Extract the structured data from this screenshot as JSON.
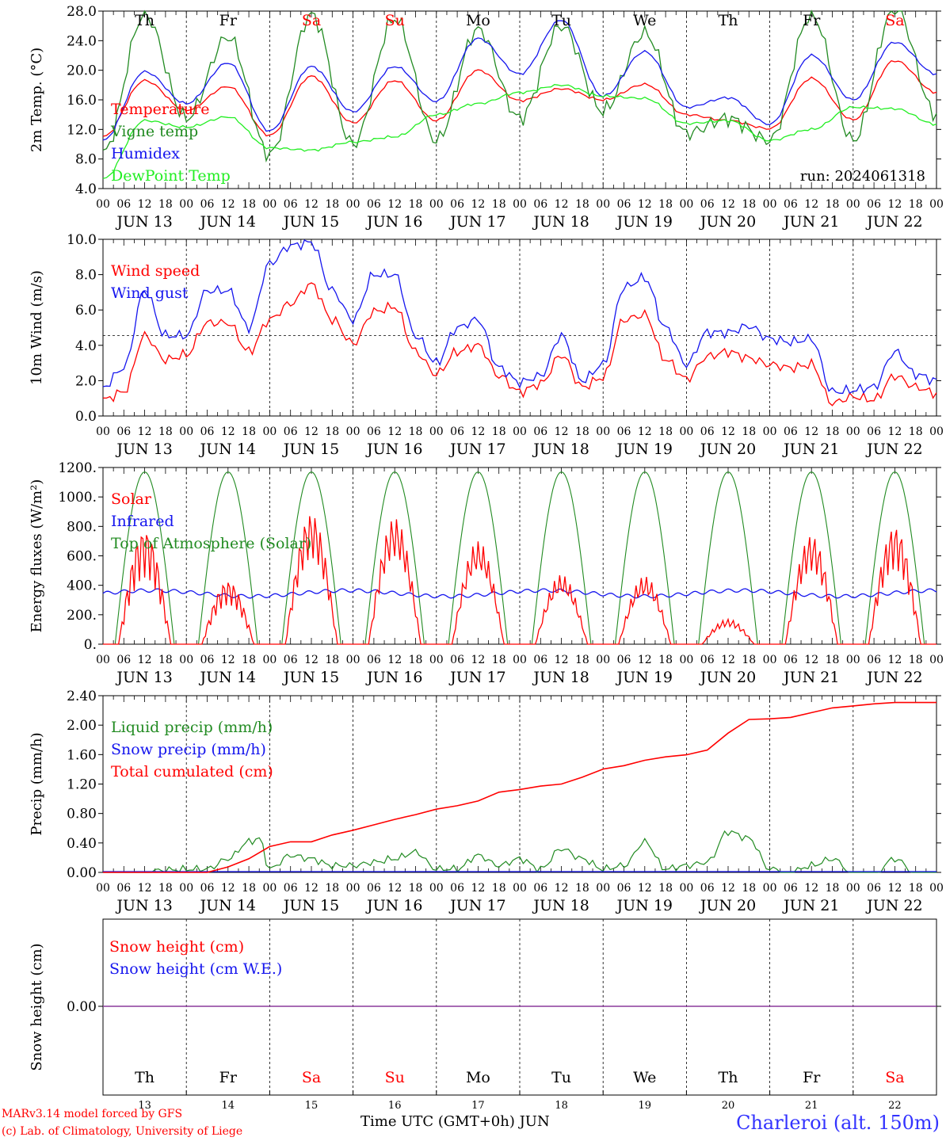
{
  "footer": {
    "model_line": "MARv3.14 model forced by GFS",
    "lab_line": "(c) Lab. of Climatology, University of Liege",
    "x_title": "Time UTC (GMT+0h) JUN",
    "station": "Charleroi (alt. 150m)"
  },
  "colors": {
    "red": "#ff0000",
    "green": "#228b22",
    "blue": "#1515ee",
    "light_green": "#22ee22",
    "purple": "#8b3a9b"
  },
  "chart_data": [
    {
      "type": "line",
      "ylabel": "2m Temp. (°C)",
      "ylim": [
        4,
        28
      ],
      "yticks": [
        "4.0",
        "8.0",
        "12.0",
        "16.0",
        "20.0",
        "24.0",
        "28.0"
      ],
      "day_names": [
        "Th",
        "Fr",
        "Sa",
        "Su",
        "Mo",
        "Tu",
        "We",
        "Th",
        "Fr",
        "Sa"
      ],
      "day_colors": [
        "#000000",
        "#000000",
        "#ff0000",
        "#ff0000",
        "#000000",
        "#000000",
        "#000000",
        "#000000",
        "#000000",
        "#ff0000"
      ],
      "annotation": "run: 2024061318",
      "x_hours_labels": [
        "00",
        "06",
        "12",
        "18"
      ],
      "x_day_labels": [
        "JUN 13",
        "JUN 14",
        "JUN 15",
        "JUN 16",
        "JUN 17",
        "JUN 18",
        "JUN 19",
        "JUN 20",
        "JUN 21",
        "JUN 22"
      ],
      "series": [
        {
          "name": "Temperature",
          "color": "#ff0000",
          "x": [
            0,
            12,
            24,
            36,
            48,
            60,
            72,
            84,
            96,
            108,
            120,
            132,
            144,
            156,
            168,
            180,
            192,
            204,
            216,
            228,
            240
          ],
          "values": [
            11.0,
            18.6,
            14.6,
            17.8,
            11.2,
            19.2,
            12.9,
            18.6,
            13.2,
            20.0,
            15.9,
            17.5,
            16.0,
            18.1,
            14.0,
            13.2,
            12.1,
            18.9,
            13.3,
            21.3,
            17.0
          ]
        },
        {
          "name": "Vigne temp",
          "color": "#228b22",
          "x": [
            0,
            12,
            24,
            36,
            48,
            60,
            72,
            84,
            96,
            108,
            120,
            132,
            144,
            156,
            168,
            180,
            192,
            204,
            216,
            228,
            240
          ],
          "values": [
            8.8,
            27.5,
            13.5,
            24.5,
            8.6,
            27.5,
            10.0,
            27.0,
            10.5,
            25.5,
            13.5,
            26.0,
            14.5,
            25.0,
            11.5,
            13.5,
            10.5,
            27.5,
            10.5,
            28.5,
            14.0
          ]
        },
        {
          "name": "Humidex",
          "color": "#1515ee",
          "x": [
            0,
            12,
            24,
            36,
            48,
            60,
            72,
            84,
            96,
            108,
            120,
            132,
            144,
            156,
            168,
            180,
            192,
            204,
            216,
            228,
            240
          ],
          "values": [
            10.5,
            19.8,
            15.5,
            21.0,
            11.8,
            20.5,
            14.4,
            20.5,
            15.8,
            24.3,
            19.5,
            26.8,
            16.5,
            22.5,
            15.0,
            16.3,
            12.7,
            22.0,
            16.0,
            23.8,
            19.5
          ]
        },
        {
          "name": "DewPoint Temp",
          "color": "#22ee22",
          "x": [
            0,
            12,
            24,
            36,
            48,
            60,
            72,
            84,
            96,
            108,
            120,
            132,
            144,
            156,
            168,
            180,
            192,
            204,
            216,
            228,
            240
          ],
          "values": [
            5.3,
            13.2,
            12.3,
            13.7,
            9.5,
            9.2,
            10.3,
            11.0,
            14.0,
            15.5,
            17.0,
            18.0,
            16.5,
            16.2,
            12.8,
            13.2,
            10.5,
            12.0,
            15.0,
            14.8,
            12.7
          ]
        }
      ]
    },
    {
      "type": "line",
      "ylabel": "10m Wind (m/s)",
      "ylim": [
        0,
        11
      ],
      "yticks": [
        "0.0",
        "2.0",
        "4.0",
        "6.0",
        "8.0",
        "10.0"
      ],
      "reference_line": 5,
      "x_hours_labels": [
        "00",
        "06",
        "12",
        "18"
      ],
      "x_day_labels": [
        "JUN 13",
        "JUN 14",
        "JUN 15",
        "JUN 16",
        "JUN 17",
        "JUN 18",
        "JUN 19",
        "JUN 20",
        "JUN 21",
        "JUN 22"
      ],
      "series": [
        {
          "name": "Wind speed",
          "color": "#ff0000",
          "x": [
            0,
            6,
            12,
            18,
            24,
            30,
            36,
            42,
            48,
            54,
            60,
            66,
            72,
            78,
            84,
            90,
            96,
            102,
            108,
            114,
            120,
            126,
            132,
            138,
            144,
            150,
            156,
            162,
            168,
            174,
            180,
            186,
            192,
            198,
            204,
            210,
            216,
            222,
            228,
            234,
            240
          ],
          "values": [
            1.0,
            1.5,
            5.0,
            3.5,
            3.8,
            5.8,
            5.8,
            4.0,
            6.0,
            7.0,
            8.2,
            6.0,
            4.5,
            6.5,
            6.8,
            4.0,
            2.6,
            4.0,
            4.4,
            2.5,
            1.5,
            2.0,
            3.8,
            1.8,
            2.4,
            6.0,
            6.3,
            3.5,
            2.3,
            3.7,
            4.0,
            3.6,
            3.2,
            3.0,
            3.2,
            0.8,
            1.2,
            1.0,
            2.5,
            1.8,
            1.4
          ]
        },
        {
          "name": "Wind gust",
          "color": "#1515ee",
          "x": [
            0,
            6,
            12,
            18,
            24,
            30,
            36,
            42,
            48,
            54,
            60,
            66,
            72,
            78,
            84,
            90,
            96,
            102,
            108,
            114,
            120,
            126,
            132,
            138,
            144,
            150,
            156,
            162,
            168,
            174,
            180,
            186,
            192,
            198,
            204,
            210,
            216,
            222,
            228,
            234,
            240
          ],
          "values": [
            1.8,
            3.0,
            7.8,
            5.0,
            5.0,
            7.8,
            7.8,
            5.5,
            9.5,
            10.6,
            10.8,
            7.8,
            6.0,
            8.8,
            8.8,
            5.0,
            3.3,
            5.5,
            6.0,
            3.0,
            2.1,
            2.5,
            5.0,
            2.2,
            3.2,
            8.0,
            8.6,
            5.5,
            3.2,
            5.2,
            5.2,
            5.6,
            4.8,
            4.6,
            4.8,
            1.5,
            1.6,
            1.8,
            4.0,
            2.6,
            2.2
          ]
        }
      ]
    },
    {
      "type": "line",
      "ylabel": "Energy fluxes (W/m²)",
      "ylim": [
        0,
        1200
      ],
      "yticks": [
        "0.",
        "200.",
        "400.",
        "600.",
        "800.",
        "1000.",
        "1200."
      ],
      "x_hours_labels": [
        "00",
        "06",
        "12",
        "18"
      ],
      "x_day_labels": [
        "JUN 13",
        "JUN 14",
        "JUN 15",
        "JUN 16",
        "JUN 17",
        "JUN 18",
        "JUN 19",
        "JUN 20",
        "JUN 21",
        "JUN 22"
      ],
      "solar_peaks": [
        780,
        430,
        890,
        860,
        700,
        470,
        460,
        170,
        740,
        800
      ],
      "series": [
        {
          "name": "Solar",
          "color": "#ff0000"
        },
        {
          "name": "Infrared",
          "color": "#1515ee",
          "values_mean": 345
        },
        {
          "name": "Top of Atmosphere (Solar)",
          "color": "#228b22",
          "peak": 1170
        }
      ]
    },
    {
      "type": "line",
      "ylabel": "Precip (mm/h)",
      "ylim": [
        0,
        2.6
      ],
      "yticks": [
        "0.00",
        "0.40",
        "0.80",
        "1.20",
        "1.60",
        "2.00",
        "2.40"
      ],
      "x_hours_labels": [
        "00",
        "06",
        "12",
        "18"
      ],
      "x_day_labels": [
        "JUN 13",
        "JUN 14",
        "JUN 15",
        "JUN 16",
        "JUN 17",
        "JUN 18",
        "JUN 19",
        "JUN 20",
        "JUN 21",
        "JUN 22"
      ],
      "series": [
        {
          "name": "Liquid precip (mm/h)",
          "color": "#228b22",
          "x": [
            0,
            30,
            36,
            42,
            45,
            48,
            54,
            60,
            66,
            72,
            78,
            84,
            90,
            96,
            102,
            108,
            114,
            120,
            126,
            132,
            138,
            144,
            150,
            156,
            162,
            168,
            174,
            180,
            186,
            192,
            198,
            204,
            210,
            216,
            222,
            228,
            234,
            240
          ],
          "values": [
            0,
            0.05,
            0.2,
            0.45,
            0.5,
            0.05,
            0.25,
            0.2,
            0.1,
            0.1,
            0.15,
            0.2,
            0.3,
            0.05,
            0.05,
            0.25,
            0.1,
            0.2,
            0.05,
            0.35,
            0.2,
            0.05,
            0.1,
            0.45,
            0.05,
            0.1,
            0.15,
            0.6,
            0.5,
            0.05,
            0,
            0.1,
            0.2,
            0,
            0,
            0.2,
            0,
            0
          ]
        },
        {
          "name": "Snow precip (mm/h)",
          "color": "#1515ee"
        },
        {
          "name": "Total cumulated (cm)",
          "color": "#ff0000",
          "x": [
            0,
            30,
            36,
            42,
            48,
            54,
            60,
            66,
            72,
            78,
            84,
            90,
            96,
            102,
            108,
            114,
            120,
            126,
            132,
            138,
            144,
            150,
            156,
            162,
            168,
            174,
            180,
            186,
            192,
            198,
            204,
            210,
            216,
            222,
            228,
            234,
            240
          ],
          "values": [
            0,
            0,
            0.08,
            0.2,
            0.38,
            0.45,
            0.45,
            0.55,
            0.62,
            0.7,
            0.78,
            0.85,
            0.93,
            0.98,
            1.05,
            1.18,
            1.22,
            1.27,
            1.3,
            1.4,
            1.52,
            1.57,
            1.65,
            1.7,
            1.73,
            1.8,
            2.05,
            2.25,
            2.26,
            2.28,
            2.35,
            2.42,
            2.45,
            2.48,
            2.5,
            2.5,
            2.5
          ]
        }
      ]
    },
    {
      "type": "line",
      "ylabel": "Snow height (cm)",
      "yticks": [
        "0.00"
      ],
      "day_names": [
        "Th",
        "Fr",
        "Sa",
        "Su",
        "Mo",
        "Tu",
        "We",
        "Th",
        "Fr",
        "Sa"
      ],
      "day_colors": [
        "#000000",
        "#000000",
        "#ff0000",
        "#ff0000",
        "#000000",
        "#000000",
        "#000000",
        "#000000",
        "#000000",
        "#ff0000"
      ],
      "day_numbers": [
        "13",
        "14",
        "15",
        "16",
        "17",
        "18",
        "19",
        "20",
        "21",
        "22"
      ],
      "series": [
        {
          "name": "Snow height (cm)",
          "color": "#ff0000",
          "values": [
            0,
            0
          ]
        },
        {
          "name": "Snow height (cm W.E.)",
          "color": "#1515ee",
          "values": [
            0,
            0
          ]
        }
      ]
    }
  ]
}
